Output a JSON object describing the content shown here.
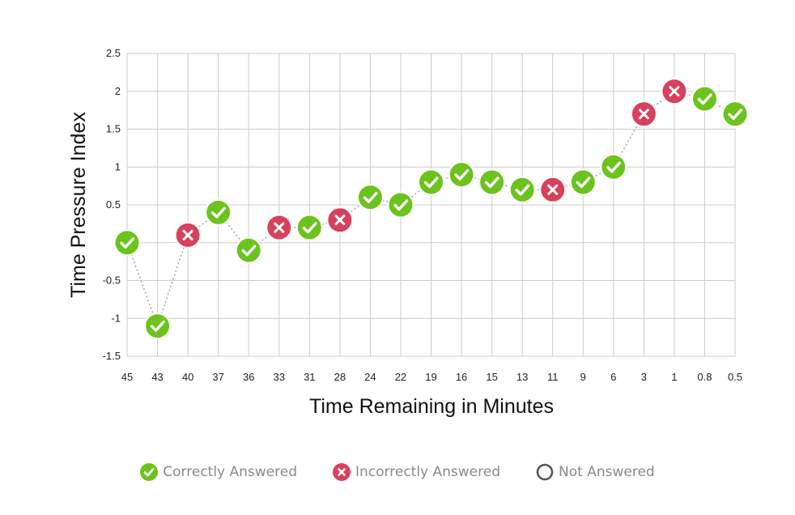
{
  "chart_data": {
    "type": "scatter",
    "title": "",
    "xlabel": "Time Remaining in Minutes",
    "ylabel": "Time Pressure Index",
    "categories": [
      "45",
      "43",
      "40",
      "37",
      "36",
      "33",
      "31",
      "28",
      "24",
      "22",
      "19",
      "16",
      "15",
      "13",
      "11",
      "9",
      "6",
      "3",
      "1",
      "0.8",
      "0.5"
    ],
    "values": [
      0,
      -1.1,
      0.1,
      0.4,
      -0.1,
      0.2,
      0.2,
      0.3,
      0.6,
      0.5,
      0.8,
      0.9,
      0.8,
      0.7,
      0.7,
      0.8,
      1.0,
      1.7,
      2.0,
      1.9,
      1.7
    ],
    "status": [
      "correct",
      "correct",
      "incorrect",
      "correct",
      "correct",
      "incorrect",
      "correct",
      "incorrect",
      "correct",
      "correct",
      "correct",
      "correct",
      "correct",
      "correct",
      "incorrect",
      "correct",
      "correct",
      "incorrect",
      "incorrect",
      "correct",
      "correct"
    ],
    "yticks": [
      "2.5",
      "2",
      "1.5",
      "1",
      "0.5",
      "0",
      "-0.5",
      "-1",
      "-1.5"
    ],
    "ylim": [
      -1.5,
      2.5
    ],
    "grid": true,
    "connector": "dotted",
    "legend_position": "bottom",
    "legend": [
      {
        "key": "correct",
        "label": "Correctly Answered",
        "icon": "check-circle-icon"
      },
      {
        "key": "incorrect",
        "label": "Incorrectly Answered",
        "icon": "x-circle-icon"
      },
      {
        "key": "unanswered",
        "label": "Not Answered",
        "icon": "empty-circle-icon"
      }
    ],
    "colors": {
      "correct": "#6cc31e",
      "incorrect": "#d8405b",
      "unanswered": "#555555",
      "grid": "#cccccc",
      "connector": "#9a9a9a"
    }
  }
}
